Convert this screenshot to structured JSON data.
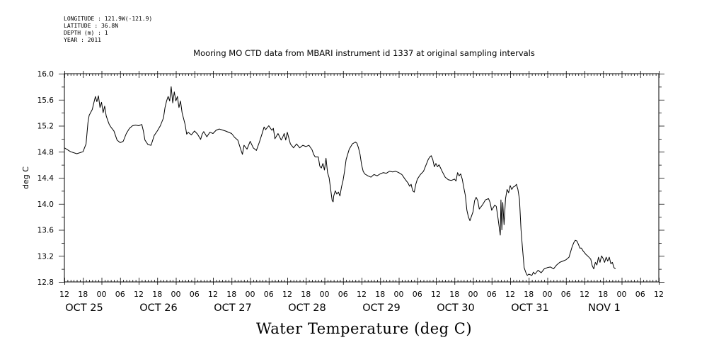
{
  "meta_lines": [
    "LONGITUDE : 121.9W(-121.9)",
    "LATITUDE : 36.8N",
    "DEPTH (m) : 1",
    "YEAR : 2011"
  ],
  "chart_data": {
    "type": "line",
    "title": "Mooring MO CTD data from MBARI instrument id 1337 at original sampling intervals",
    "ylabel": "deg C",
    "xlabel": "Water Temperature (deg C)",
    "ylim": [
      12.8,
      16.0
    ],
    "yticks": [
      "12.8",
      "13.2",
      "13.6",
      "14.0",
      "14.4",
      "14.8",
      "15.2",
      "15.6",
      "16.0"
    ],
    "x_unit": "hours since Oct 25 00:00, 2011",
    "xlim": [
      -12,
      180
    ],
    "xticks": [
      {
        "t": -12,
        "label": "12"
      },
      {
        "t": -6,
        "label": "18"
      },
      {
        "t": 0,
        "label": "00"
      },
      {
        "t": 6,
        "label": "06"
      },
      {
        "t": 12,
        "label": "12"
      },
      {
        "t": 18,
        "label": "18"
      },
      {
        "t": 24,
        "label": "00"
      },
      {
        "t": 30,
        "label": "06"
      },
      {
        "t": 36,
        "label": "12"
      },
      {
        "t": 42,
        "label": "18"
      },
      {
        "t": 48,
        "label": "00"
      },
      {
        "t": 54,
        "label": "06"
      },
      {
        "t": 60,
        "label": "12"
      },
      {
        "t": 66,
        "label": "18"
      },
      {
        "t": 72,
        "label": "00"
      },
      {
        "t": 78,
        "label": "06"
      },
      {
        "t": 84,
        "label": "12"
      },
      {
        "t": 90,
        "label": "18"
      },
      {
        "t": 96,
        "label": "00"
      },
      {
        "t": 102,
        "label": "06"
      },
      {
        "t": 108,
        "label": "12"
      },
      {
        "t": 114,
        "label": "18"
      },
      {
        "t": 120,
        "label": "00"
      },
      {
        "t": 126,
        "label": "06"
      },
      {
        "t": 132,
        "label": "12"
      },
      {
        "t": 138,
        "label": "18"
      },
      {
        "t": 144,
        "label": "00"
      },
      {
        "t": 150,
        "label": "06"
      },
      {
        "t": 156,
        "label": "12"
      },
      {
        "t": 162,
        "label": "18"
      },
      {
        "t": 168,
        "label": "00"
      },
      {
        "t": 174,
        "label": "06"
      },
      {
        "t": 180,
        "label": "12"
      }
    ],
    "date_labels": [
      {
        "t": -12,
        "label": "OCT 25"
      },
      {
        "t": 12,
        "label": "OCT 26"
      },
      {
        "t": 36,
        "label": "OCT 27"
      },
      {
        "t": 60,
        "label": "OCT 28"
      },
      {
        "t": 84,
        "label": "OCT 29"
      },
      {
        "t": 108,
        "label": "OCT 30"
      },
      {
        "t": 132,
        "label": "OCT 31"
      },
      {
        "t": 156,
        "label": "NOV  1"
      }
    ],
    "series": [
      {
        "points": [
          [
            -12.0,
            14.86
          ],
          [
            -10.0,
            14.8
          ],
          [
            -8.0,
            14.77
          ],
          [
            -6.0,
            14.8
          ],
          [
            -5.0,
            14.92
          ],
          [
            -4.4,
            15.25
          ],
          [
            -4.0,
            15.36
          ],
          [
            -3.0,
            15.45
          ],
          [
            -2.5,
            15.55
          ],
          [
            -2.0,
            15.65
          ],
          [
            -1.5,
            15.57
          ],
          [
            -1.0,
            15.66
          ],
          [
            -0.5,
            15.48
          ],
          [
            0.0,
            15.56
          ],
          [
            0.5,
            15.4
          ],
          [
            1.0,
            15.5
          ],
          [
            1.5,
            15.35
          ],
          [
            2.0,
            15.28
          ],
          [
            2.5,
            15.22
          ],
          [
            3.0,
            15.18
          ],
          [
            4.0,
            15.12
          ],
          [
            5.0,
            14.98
          ],
          [
            6.0,
            14.94
          ],
          [
            7.0,
            14.96
          ],
          [
            8.0,
            15.08
          ],
          [
            9.0,
            15.16
          ],
          [
            10.0,
            15.2
          ],
          [
            11.0,
            15.21
          ],
          [
            12.0,
            15.2
          ],
          [
            13.0,
            15.22
          ],
          [
            13.5,
            15.12
          ],
          [
            14.0,
            14.98
          ],
          [
            15.0,
            14.91
          ],
          [
            16.0,
            14.9
          ],
          [
            17.0,
            15.05
          ],
          [
            18.0,
            15.12
          ],
          [
            19.0,
            15.2
          ],
          [
            20.0,
            15.32
          ],
          [
            20.5,
            15.48
          ],
          [
            21.0,
            15.58
          ],
          [
            21.5,
            15.65
          ],
          [
            22.0,
            15.58
          ],
          [
            22.5,
            15.8
          ],
          [
            23.0,
            15.55
          ],
          [
            23.5,
            15.72
          ],
          [
            24.0,
            15.58
          ],
          [
            24.5,
            15.65
          ],
          [
            25.0,
            15.48
          ],
          [
            25.5,
            15.58
          ],
          [
            26.0,
            15.4
          ],
          [
            27.0,
            15.22
          ],
          [
            27.5,
            15.07
          ],
          [
            28.0,
            15.1
          ],
          [
            29.0,
            15.06
          ],
          [
            30.0,
            15.12
          ],
          [
            31.0,
            15.07
          ],
          [
            32.0,
            14.99
          ],
          [
            32.5,
            15.07
          ],
          [
            33.0,
            15.11
          ],
          [
            34.0,
            15.03
          ],
          [
            35.0,
            15.1
          ],
          [
            36.0,
            15.08
          ],
          [
            37.0,
            15.13
          ],
          [
            38.0,
            15.15
          ],
          [
            40.0,
            15.12
          ],
          [
            42.0,
            15.08
          ],
          [
            43.0,
            15.02
          ],
          [
            44.0,
            14.98
          ],
          [
            45.0,
            14.83
          ],
          [
            45.5,
            14.76
          ],
          [
            46.0,
            14.9
          ],
          [
            47.0,
            14.84
          ],
          [
            48.0,
            14.96
          ],
          [
            49.0,
            14.86
          ],
          [
            50.0,
            14.82
          ],
          [
            51.0,
            14.95
          ],
          [
            52.0,
            15.1
          ],
          [
            52.5,
            15.18
          ],
          [
            53.0,
            15.14
          ],
          [
            54.0,
            15.2
          ],
          [
            55.0,
            15.13
          ],
          [
            55.5,
            15.16
          ],
          [
            56.0,
            15.0
          ],
          [
            57.0,
            15.08
          ],
          [
            58.0,
            14.98
          ],
          [
            58.5,
            15.02
          ],
          [
            59.0,
            15.08
          ],
          [
            59.5,
            14.98
          ],
          [
            60.0,
            15.1
          ],
          [
            61.0,
            14.92
          ],
          [
            62.0,
            14.86
          ],
          [
            63.0,
            14.92
          ],
          [
            64.0,
            14.86
          ],
          [
            65.0,
            14.9
          ],
          [
            66.0,
            14.88
          ],
          [
            67.0,
            14.9
          ],
          [
            68.0,
            14.83
          ],
          [
            68.5,
            14.76
          ],
          [
            69.0,
            14.72
          ],
          [
            70.0,
            14.72
          ],
          [
            70.5,
            14.58
          ],
          [
            71.0,
            14.55
          ],
          [
            71.5,
            14.62
          ],
          [
            72.0,
            14.52
          ],
          [
            72.5,
            14.7
          ],
          [
            73.0,
            14.48
          ],
          [
            73.5,
            14.4
          ],
          [
            74.0,
            14.22
          ],
          [
            74.5,
            14.05
          ],
          [
            74.8,
            14.03
          ],
          [
            75.0,
            14.12
          ],
          [
            75.5,
            14.2
          ],
          [
            76.0,
            14.15
          ],
          [
            76.5,
            14.18
          ],
          [
            77.0,
            14.12
          ],
          [
            77.5,
            14.26
          ],
          [
            78.0,
            14.36
          ],
          [
            78.5,
            14.5
          ],
          [
            79.0,
            14.68
          ],
          [
            80.0,
            14.84
          ],
          [
            81.0,
            14.92
          ],
          [
            82.0,
            14.95
          ],
          [
            82.5,
            14.93
          ],
          [
            83.0,
            14.86
          ],
          [
            83.5,
            14.76
          ],
          [
            84.0,
            14.6
          ],
          [
            84.5,
            14.5
          ],
          [
            85.0,
            14.46
          ],
          [
            86.0,
            14.43
          ],
          [
            87.0,
            14.41
          ],
          [
            88.0,
            14.45
          ],
          [
            89.0,
            14.43
          ],
          [
            90.0,
            14.46
          ],
          [
            91.0,
            14.48
          ],
          [
            92.0,
            14.47
          ],
          [
            93.0,
            14.5
          ],
          [
            94.0,
            14.49
          ],
          [
            95.0,
            14.5
          ],
          [
            96.0,
            14.48
          ],
          [
            97.0,
            14.45
          ],
          [
            98.0,
            14.38
          ],
          [
            99.0,
            14.32
          ],
          [
            99.5,
            14.27
          ],
          [
            100.0,
            14.3
          ],
          [
            100.5,
            14.2
          ],
          [
            101.0,
            14.18
          ],
          [
            101.5,
            14.3
          ],
          [
            102.0,
            14.38
          ],
          [
            103.0,
            14.45
          ],
          [
            104.0,
            14.5
          ],
          [
            105.0,
            14.62
          ],
          [
            105.5,
            14.68
          ],
          [
            106.0,
            14.72
          ],
          [
            106.5,
            14.74
          ],
          [
            107.0,
            14.68
          ],
          [
            107.5,
            14.57
          ],
          [
            108.0,
            14.62
          ],
          [
            108.5,
            14.57
          ],
          [
            109.0,
            14.6
          ],
          [
            110.0,
            14.5
          ],
          [
            111.0,
            14.41
          ],
          [
            112.0,
            14.37
          ],
          [
            113.0,
            14.36
          ],
          [
            114.0,
            14.38
          ],
          [
            114.5,
            14.35
          ],
          [
            115.0,
            14.48
          ],
          [
            115.5,
            14.43
          ],
          [
            116.0,
            14.46
          ],
          [
            116.5,
            14.38
          ],
          [
            117.0,
            14.25
          ],
          [
            117.5,
            14.13
          ],
          [
            118.0,
            13.9
          ],
          [
            118.5,
            13.8
          ],
          [
            119.0,
            13.74
          ],
          [
            120.0,
            13.88
          ],
          [
            120.5,
            14.05
          ],
          [
            121.0,
            14.1
          ],
          [
            121.5,
            14.05
          ],
          [
            122.0,
            13.92
          ],
          [
            123.0,
            13.98
          ],
          [
            124.0,
            14.06
          ],
          [
            125.0,
            14.08
          ],
          [
            125.5,
            14.02
          ],
          [
            126.0,
            13.9
          ],
          [
            127.0,
            13.98
          ],
          [
            127.5,
            13.96
          ],
          [
            128.0,
            13.8
          ],
          [
            128.5,
            13.62
          ],
          [
            128.8,
            13.52
          ],
          [
            129.0,
            14.06
          ],
          [
            129.3,
            13.6
          ],
          [
            129.6,
            14.02
          ],
          [
            130.0,
            13.68
          ],
          [
            130.5,
            14.08
          ],
          [
            131.0,
            14.22
          ],
          [
            131.5,
            14.17
          ],
          [
            132.0,
            14.28
          ],
          [
            132.5,
            14.22
          ],
          [
            133.0,
            14.26
          ],
          [
            133.5,
            14.27
          ],
          [
            134.0,
            14.3
          ],
          [
            134.5,
            14.22
          ],
          [
            135.0,
            14.07
          ],
          [
            135.5,
            13.6
          ],
          [
            136.0,
            13.3
          ],
          [
            136.5,
            13.02
          ],
          [
            137.0,
            12.95
          ],
          [
            137.5,
            12.9
          ],
          [
            138.0,
            12.92
          ],
          [
            139.0,
            12.9
          ],
          [
            139.5,
            12.95
          ],
          [
            140.0,
            12.92
          ],
          [
            141.0,
            12.98
          ],
          [
            142.0,
            12.94
          ],
          [
            143.0,
            13.0
          ],
          [
            144.0,
            13.02
          ],
          [
            145.0,
            13.03
          ],
          [
            146.0,
            13.0
          ],
          [
            147.0,
            13.06
          ],
          [
            148.0,
            13.1
          ],
          [
            149.0,
            13.12
          ],
          [
            150.0,
            13.14
          ],
          [
            151.0,
            13.18
          ],
          [
            151.5,
            13.26
          ],
          [
            152.0,
            13.34
          ],
          [
            152.5,
            13.4
          ],
          [
            153.0,
            13.44
          ],
          [
            153.5,
            13.43
          ],
          [
            154.0,
            13.38
          ],
          [
            154.5,
            13.32
          ],
          [
            155.0,
            13.32
          ],
          [
            155.5,
            13.28
          ],
          [
            156.0,
            13.25
          ],
          [
            156.5,
            13.22
          ],
          [
            157.0,
            13.2
          ],
          [
            158.0,
            13.15
          ],
          [
            158.5,
            13.05
          ],
          [
            159.0,
            13.0
          ],
          [
            159.5,
            13.1
          ],
          [
            160.0,
            13.06
          ],
          [
            160.5,
            13.18
          ],
          [
            161.0,
            13.1
          ],
          [
            161.5,
            13.2
          ],
          [
            162.0,
            13.16
          ],
          [
            162.5,
            13.1
          ],
          [
            163.0,
            13.18
          ],
          [
            163.5,
            13.12
          ],
          [
            164.0,
            13.18
          ],
          [
            164.5,
            13.08
          ],
          [
            165.0,
            13.1
          ],
          [
            165.5,
            13.02
          ],
          [
            166.0,
            13.0
          ]
        ]
      }
    ]
  }
}
